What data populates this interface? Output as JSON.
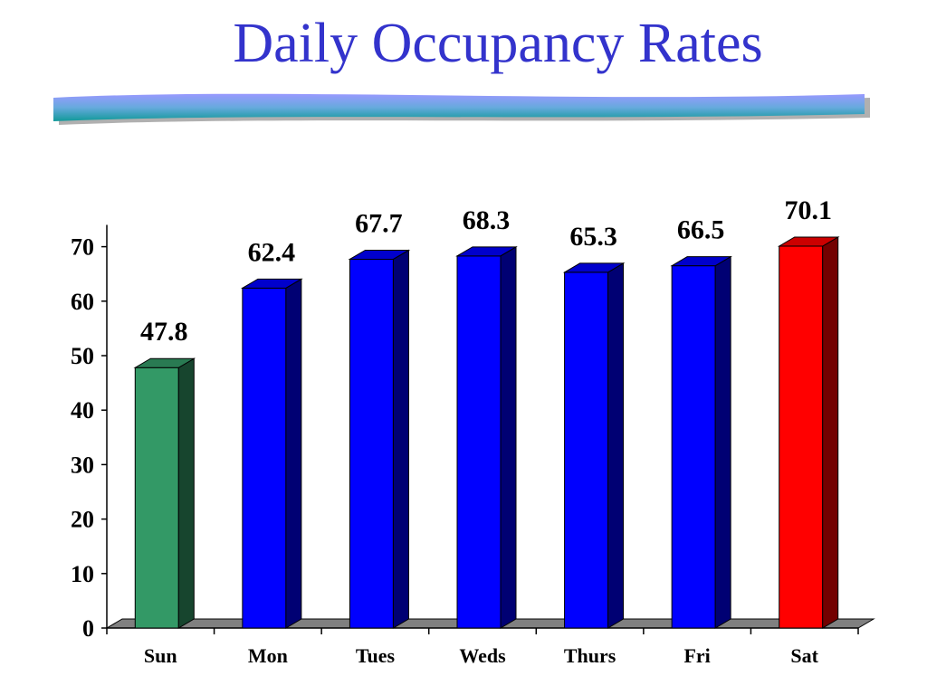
{
  "page": {
    "title": "Daily Occupancy Rates"
  },
  "colors": {
    "title": "#3333cc",
    "bar_default": "#0000ff",
    "bar_lowest": "#339966",
    "bar_highest": "#ff0000",
    "floor": "#808080"
  },
  "chart_data": {
    "type": "bar",
    "style": "3d",
    "title": "",
    "xlabel": "",
    "ylabel": "",
    "categories": [
      "Sun",
      "Mon",
      "Tues",
      "Weds",
      "Thurs",
      "Fri",
      "Sat"
    ],
    "values": [
      47.8,
      62.4,
      67.7,
      68.3,
      65.3,
      66.5,
      70.1
    ],
    "value_labels": [
      "47.8",
      "62.4",
      "67.7",
      "68.3",
      "65.3",
      "66.5",
      "70.1"
    ],
    "bar_colors": [
      "#339966",
      "#0000ff",
      "#0000ff",
      "#0000ff",
      "#0000ff",
      "#0000ff",
      "#ff0000"
    ],
    "ylim": [
      0,
      75
    ],
    "yticks": [
      0,
      10,
      20,
      30,
      40,
      50,
      60,
      70
    ],
    "grid": false,
    "legend": "none"
  }
}
